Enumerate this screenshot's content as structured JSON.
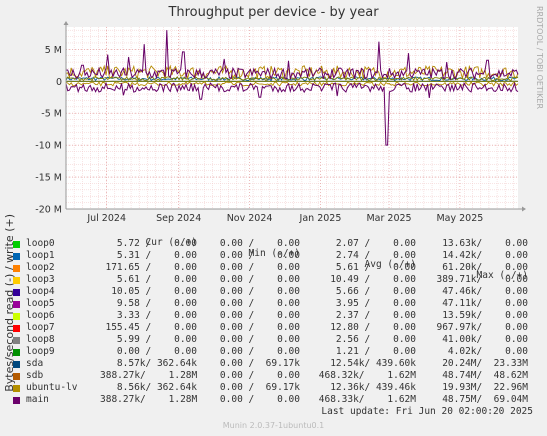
{
  "header": {
    "title": "Throughput per device - by year",
    "side_label": "RRDTOOL / TOBI OETIKER"
  },
  "chart_data": {
    "type": "line",
    "title": "Throughput per device - by year",
    "ylabel": "Bytes/second read (-) / write (+)",
    "ylim": [
      -20000000,
      8500000
    ],
    "yticks": [
      {
        "value": 5000000,
        "label": "5 M"
      },
      {
        "value": 0,
        "label": "0"
      },
      {
        "value": -5000000,
        "label": "-5 M"
      },
      {
        "value": -10000000,
        "label": "-10 M"
      },
      {
        "value": -15000000,
        "label": "-15 M"
      },
      {
        "value": -20000000,
        "label": "-20 M"
      }
    ],
    "xrange": [
      "2024-05-27",
      "2025-06-20"
    ],
    "xticks": [
      {
        "date": "2024-07-01",
        "label": "Jul 2024"
      },
      {
        "date": "2024-09-01",
        "label": "Sep 2024"
      },
      {
        "date": "2024-11-01",
        "label": "Nov 2024"
      },
      {
        "date": "2025-01-01",
        "label": "Jan 2025"
      },
      {
        "date": "2025-03-01",
        "label": "Mar 2025"
      },
      {
        "date": "2025-05-01",
        "label": "May 2025"
      }
    ],
    "grid": true,
    "series": [
      {
        "name": "main",
        "color": "#660066",
        "write_peaks": [
          {
            "date": "2024-06-10",
            "value": 2500000
          },
          {
            "date": "2024-07-02",
            "value": 4200000
          },
          {
            "date": "2024-07-20",
            "value": 3800000
          },
          {
            "date": "2024-08-02",
            "value": 5800000
          },
          {
            "date": "2024-08-22",
            "value": 8000000
          },
          {
            "date": "2024-09-05",
            "value": 4600000
          },
          {
            "date": "2024-10-10",
            "value": 3500000
          },
          {
            "date": "2024-12-05",
            "value": 3200000
          },
          {
            "date": "2025-02-20",
            "value": 6200000
          },
          {
            "date": "2025-03-18",
            "value": 4400000
          },
          {
            "date": "2025-04-20",
            "value": 3000000
          },
          {
            "date": "2025-05-25",
            "value": 3300000
          }
        ],
        "read_peaks": [
          {
            "date": "2024-07-15",
            "value": -2200000
          },
          {
            "date": "2024-09-20",
            "value": -2800000
          },
          {
            "date": "2024-11-10",
            "value": -2500000
          },
          {
            "date": "2025-01-15",
            "value": -2300000
          },
          {
            "date": "2025-02-27",
            "value": -10000000
          },
          {
            "date": "2025-04-05",
            "value": -2600000
          }
        ],
        "typical_write": 1100000,
        "typical_read": -900000
      },
      {
        "name": "sda",
        "color": "#0a5a96",
        "typical_write": 362640,
        "typical_read": -8570
      },
      {
        "name": "sdb",
        "color": "#b58900",
        "typical_write": 1280000,
        "typical_read": -388270
      },
      {
        "name": "ubuntu-lv",
        "color": "#808000",
        "typical_write": 362640,
        "typical_read": -8560
      }
    ]
  },
  "legend": {
    "headers": {
      "cur": "Cur (-/+)",
      "min": "Min (-/+)",
      "avg": "Avg (-/+)",
      "max": "Max (-/+)"
    },
    "rows": [
      {
        "name": "loop0",
        "color": "#00cc00",
        "cur": "5.72 /    0.00",
        "min": "0.00 /    0.00",
        "avg": "2.07 /    0.00",
        "max": "13.63k/    0.00"
      },
      {
        "name": "loop1",
        "color": "#0066b3",
        "cur": "5.31 /    0.00",
        "min": "0.00 /    0.00",
        "avg": "2.74 /    0.00",
        "max": "14.42k/    0.00"
      },
      {
        "name": "loop2",
        "color": "#ff8000",
        "cur": "171.65 /    0.00",
        "min": "0.00 /    0.00",
        "avg": "5.61 /    0.00",
        "max": "61.20k/    0.00"
      },
      {
        "name": "loop3",
        "color": "#ffcc00",
        "cur": "5.61 /    0.00",
        "min": "0.00 /    0.00",
        "avg": "10.49 /    0.00",
        "max": "389.71k/    0.00"
      },
      {
        "name": "loop4",
        "color": "#330099",
        "cur": "10.05 /    0.00",
        "min": "0.00 /    0.00",
        "avg": "5.66 /    0.00",
        "max": "47.46k/    0.00"
      },
      {
        "name": "loop5",
        "color": "#990099",
        "cur": "9.58 /    0.00",
        "min": "0.00 /    0.00",
        "avg": "3.95 /    0.00",
        "max": "47.11k/    0.00"
      },
      {
        "name": "loop6",
        "color": "#ccff00",
        "cur": "3.33 /    0.00",
        "min": "0.00 /    0.00",
        "avg": "2.37 /    0.00",
        "max": "13.59k/    0.00"
      },
      {
        "name": "loop7",
        "color": "#ff0000",
        "cur": "155.45 /    0.00",
        "min": "0.00 /    0.00",
        "avg": "12.80 /    0.00",
        "max": "967.97k/    0.00"
      },
      {
        "name": "loop8",
        "color": "#808080",
        "cur": "5.99 /    0.00",
        "min": "0.00 /    0.00",
        "avg": "2.56 /    0.00",
        "max": "41.00k/    0.00"
      },
      {
        "name": "loop9",
        "color": "#008f00",
        "cur": "0.00 /    0.00",
        "min": "0.00 /    0.00",
        "avg": "1.21 /    0.00",
        "max": "4.02k/    0.00"
      },
      {
        "name": "sda",
        "color": "#00487d",
        "cur": "8.57k/ 362.64k",
        "min": "0.00 /  69.17k",
        "avg": "12.54k/ 439.60k",
        "max": "20.24M/  23.33M"
      },
      {
        "name": "sdb",
        "color": "#b35a00",
        "cur": "388.27k/    1.28M",
        "min": "0.00 /    0.00",
        "avg": "468.32k/    1.62M",
        "max": "48.74M/  48.62M"
      },
      {
        "name": "ubuntu-lv",
        "color": "#b38f00",
        "cur": "8.56k/ 362.64k",
        "min": "0.00 /  69.17k",
        "avg": "12.36k/ 439.46k",
        "max": "19.93M/  22.96M"
      },
      {
        "name": "main",
        "color": "#6b006b",
        "cur": "388.27k/    1.28M",
        "min": "0.00 /    0.00",
        "avg": "468.33k/    1.62M",
        "max": "48.75M/  69.04M"
      }
    ]
  },
  "footer": {
    "last_update": "Last update: Fri Jun 20 02:00:20 2025",
    "credit": "Munin 2.0.37-1ubuntu0.1"
  }
}
